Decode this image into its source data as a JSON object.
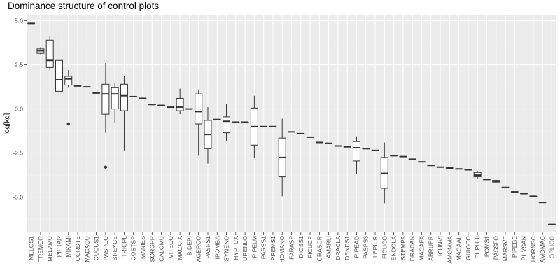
{
  "chart_data": {
    "type": "boxplot",
    "title": "Dominance structure of control plots",
    "xlabel": "",
    "ylabel": "log[kg]",
    "ylim": [
      -7.0,
      5.3
    ],
    "yticks": [
      5.0,
      2.5,
      0.0,
      -2.5,
      -5.0
    ],
    "ytick_labels": [
      "5.0",
      "2.5",
      "0.0",
      "-2.5",
      "-5.0"
    ],
    "grid": true,
    "legend": "none",
    "colors": {
      "panel": "#ebebeb",
      "grid_major": "#ffffff",
      "grid_minor": "#f4f4f4",
      "box_fill": "#ffffff",
      "line": "#333333"
    },
    "categories": [
      "MELOS1",
      "TREMOR",
      "MELAMU",
      "PIPTAR",
      "MIKAMI",
      "CORDTE",
      "MACAQU",
      "CUCUS1",
      "PASPCO",
      "BREYCE",
      "TRICPL",
      "COSTSP",
      "MANIES",
      "SORGPR",
      "CALOMU",
      "VITECO",
      "MACATA",
      "BIDEPI",
      "AGERCO",
      "PASPS1",
      "IPOMBA",
      "SYNENO",
      "HYPTCA",
      "URENLO",
      "PIPELM",
      "PARSS1",
      "PREMS1",
      "HOMANO",
      "FARASP",
      "DIOSS1",
      "FICUCP",
      "CRASCR",
      "AMARLI",
      "DRACLA",
      "DENDS1",
      "PIPEAD",
      "PASPS3",
      "LEPIUR",
      "FICUCO",
      "ENDOLA",
      "STEMPA",
      "DRACAN",
      "MACAFA",
      "ABRUPR",
      "ICHNVI",
      "AMOMMA",
      "MACAAL",
      "GUIOCO",
      "EUPHHI",
      "IPOMS1",
      "PASSFO",
      "MARSVE",
      "PIPEBE",
      "PHYSAN",
      "HORNSC",
      "AMOMAC",
      "OPLICO"
    ],
    "boxes": [
      {
        "min": 4.85,
        "q1": 4.85,
        "median": 4.85,
        "q3": 4.85,
        "max": 4.85,
        "outliers": []
      },
      {
        "min": 3.1,
        "q1": 3.15,
        "median": 3.3,
        "q3": 3.4,
        "max": 3.5,
        "outliers": []
      },
      {
        "min": 2.2,
        "q1": 2.35,
        "median": 2.75,
        "q3": 3.9,
        "max": 4.1,
        "outliers": []
      },
      {
        "min": 0.65,
        "q1": 1.0,
        "median": 1.65,
        "q3": 2.75,
        "max": 4.6,
        "outliers": []
      },
      {
        "min": 1.2,
        "q1": 1.35,
        "median": 1.7,
        "q3": 1.85,
        "max": 2.2,
        "outliers": [
          -0.85
        ]
      },
      {
        "min": 1.3,
        "q1": 1.3,
        "median": 1.3,
        "q3": 1.3,
        "max": 1.3,
        "outliers": []
      },
      {
        "min": 1.25,
        "q1": 1.25,
        "median": 1.25,
        "q3": 1.25,
        "max": 1.25,
        "outliers": []
      },
      {
        "min": 0.9,
        "q1": 0.9,
        "median": 0.9,
        "q3": 0.9,
        "max": 0.9,
        "outliers": []
      },
      {
        "min": -1.35,
        "q1": -0.3,
        "median": 0.85,
        "q3": 1.4,
        "max": 2.6,
        "outliers": [
          -3.3
        ]
      },
      {
        "min": -0.8,
        "q1": 0.0,
        "median": 0.85,
        "q3": 1.2,
        "max": 1.5,
        "outliers": []
      },
      {
        "min": -2.35,
        "q1": -0.1,
        "median": 0.75,
        "q3": 1.4,
        "max": 1.85,
        "outliers": []
      },
      {
        "min": 0.7,
        "q1": 0.7,
        "median": 0.7,
        "q3": 0.7,
        "max": 0.7,
        "outliers": []
      },
      {
        "min": 0.6,
        "q1": 0.6,
        "median": 0.6,
        "q3": 0.6,
        "max": 0.6,
        "outliers": []
      },
      {
        "min": 0.25,
        "q1": 0.25,
        "median": 0.25,
        "q3": 0.25,
        "max": 0.25,
        "outliers": []
      },
      {
        "min": 0.2,
        "q1": 0.2,
        "median": 0.2,
        "q3": 0.2,
        "max": 0.2,
        "outliers": []
      },
      {
        "min": 0.1,
        "q1": 0.1,
        "median": 0.1,
        "q3": 0.1,
        "max": 0.1,
        "outliers": []
      },
      {
        "min": -0.3,
        "q1": -0.1,
        "median": 0.1,
        "q3": 0.6,
        "max": 1.15,
        "outliers": []
      },
      {
        "min": 0.0,
        "q1": 0.0,
        "median": 0.0,
        "q3": 0.0,
        "max": 0.0,
        "outliers": []
      },
      {
        "min": -2.65,
        "q1": -0.85,
        "median": -0.15,
        "q3": 0.85,
        "max": 1.1,
        "outliers": []
      },
      {
        "min": -3.1,
        "q1": -2.25,
        "median": -1.45,
        "q3": -0.65,
        "max": 0.1,
        "outliers": []
      },
      {
        "min": -0.6,
        "q1": -0.6,
        "median": -0.6,
        "q3": -0.6,
        "max": -0.6,
        "outliers": []
      },
      {
        "min": -1.8,
        "q1": -1.35,
        "median": -0.7,
        "q3": -0.45,
        "max": 0.3,
        "outliers": []
      },
      {
        "min": -0.75,
        "q1": -0.75,
        "median": -0.75,
        "q3": -0.75,
        "max": -0.75,
        "outliers": []
      },
      {
        "min": -0.75,
        "q1": -0.75,
        "median": -0.75,
        "q3": -0.75,
        "max": -0.75,
        "outliers": []
      },
      {
        "min": -2.75,
        "q1": -2.05,
        "median": -1.0,
        "q3": 0.05,
        "max": 0.75,
        "outliers": []
      },
      {
        "min": -1.0,
        "q1": -1.0,
        "median": -1.0,
        "q3": -1.0,
        "max": -1.0,
        "outliers": []
      },
      {
        "min": -1.0,
        "q1": -1.0,
        "median": -1.0,
        "q3": -1.0,
        "max": -1.0,
        "outliers": []
      },
      {
        "min": -4.95,
        "q1": -3.85,
        "median": -2.75,
        "q3": -1.65,
        "max": -0.55,
        "outliers": []
      },
      {
        "min": -1.3,
        "q1": -1.3,
        "median": -1.3,
        "q3": -1.3,
        "max": -1.3,
        "outliers": []
      },
      {
        "min": -1.4,
        "q1": -1.4,
        "median": -1.4,
        "q3": -1.4,
        "max": -1.4,
        "outliers": []
      },
      {
        "min": -1.6,
        "q1": -1.6,
        "median": -1.6,
        "q3": -1.6,
        "max": -1.6,
        "outliers": []
      },
      {
        "min": -1.9,
        "q1": -1.9,
        "median": -1.9,
        "q3": -1.9,
        "max": -1.9,
        "outliers": []
      },
      {
        "min": -1.95,
        "q1": -1.95,
        "median": -1.95,
        "q3": -1.95,
        "max": -1.95,
        "outliers": []
      },
      {
        "min": -2.1,
        "q1": -2.1,
        "median": -2.1,
        "q3": -2.1,
        "max": -2.1,
        "outliers": []
      },
      {
        "min": -2.15,
        "q1": -2.15,
        "median": -2.15,
        "q3": -2.15,
        "max": -2.15,
        "outliers": []
      },
      {
        "min": -3.7,
        "q1": -2.95,
        "median": -2.2,
        "q3": -1.85,
        "max": -1.55,
        "outliers": []
      },
      {
        "min": -2.25,
        "q1": -2.25,
        "median": -2.25,
        "q3": -2.25,
        "max": -2.25,
        "outliers": []
      },
      {
        "min": -2.35,
        "q1": -2.35,
        "median": -2.35,
        "q3": -2.35,
        "max": -2.35,
        "outliers": []
      },
      {
        "min": -5.35,
        "q1": -4.5,
        "median": -3.65,
        "q3": -2.75,
        "max": -1.9,
        "outliers": []
      },
      {
        "min": -2.65,
        "q1": -2.65,
        "median": -2.65,
        "q3": -2.65,
        "max": -2.65,
        "outliers": []
      },
      {
        "min": -2.7,
        "q1": -2.7,
        "median": -2.7,
        "q3": -2.7,
        "max": -2.7,
        "outliers": []
      },
      {
        "min": -2.85,
        "q1": -2.85,
        "median": -2.85,
        "q3": -2.85,
        "max": -2.85,
        "outliers": []
      },
      {
        "min": -3.0,
        "q1": -3.0,
        "median": -3.0,
        "q3": -3.0,
        "max": -3.0,
        "outliers": []
      },
      {
        "min": -3.2,
        "q1": -3.2,
        "median": -3.2,
        "q3": -3.2,
        "max": -3.2,
        "outliers": []
      },
      {
        "min": -3.3,
        "q1": -3.3,
        "median": -3.3,
        "q3": -3.3,
        "max": -3.3,
        "outliers": []
      },
      {
        "min": -3.35,
        "q1": -3.35,
        "median": -3.35,
        "q3": -3.35,
        "max": -3.35,
        "outliers": []
      },
      {
        "min": -3.4,
        "q1": -3.4,
        "median": -3.4,
        "q3": -3.4,
        "max": -3.4,
        "outliers": []
      },
      {
        "min": -3.45,
        "q1": -3.45,
        "median": -3.45,
        "q3": -3.45,
        "max": -3.45,
        "outliers": []
      },
      {
        "min": -3.95,
        "q1": -3.85,
        "median": -3.75,
        "q3": -3.6,
        "max": -3.5,
        "outliers": []
      },
      {
        "min": -4.0,
        "q1": -4.0,
        "median": -4.0,
        "q3": -4.0,
        "max": -4.0,
        "outliers": []
      },
      {
        "min": -4.2,
        "q1": -4.15,
        "median": -4.1,
        "q3": -4.05,
        "max": -4.0,
        "outliers": []
      },
      {
        "min": -4.45,
        "q1": -4.45,
        "median": -4.45,
        "q3": -4.45,
        "max": -4.45,
        "outliers": []
      },
      {
        "min": -4.7,
        "q1": -4.7,
        "median": -4.7,
        "q3": -4.7,
        "max": -4.7,
        "outliers": []
      },
      {
        "min": -4.8,
        "q1": -4.8,
        "median": -4.8,
        "q3": -4.8,
        "max": -4.8,
        "outliers": []
      },
      {
        "min": -4.95,
        "q1": -4.95,
        "median": -4.95,
        "q3": -4.95,
        "max": -4.95,
        "outliers": []
      },
      {
        "min": -5.3,
        "q1": -5.3,
        "median": -5.3,
        "q3": -5.3,
        "max": -5.3,
        "outliers": []
      },
      {
        "min": -6.55,
        "q1": -6.55,
        "median": -6.55,
        "q3": -6.55,
        "max": -6.55,
        "outliers": []
      }
    ]
  }
}
